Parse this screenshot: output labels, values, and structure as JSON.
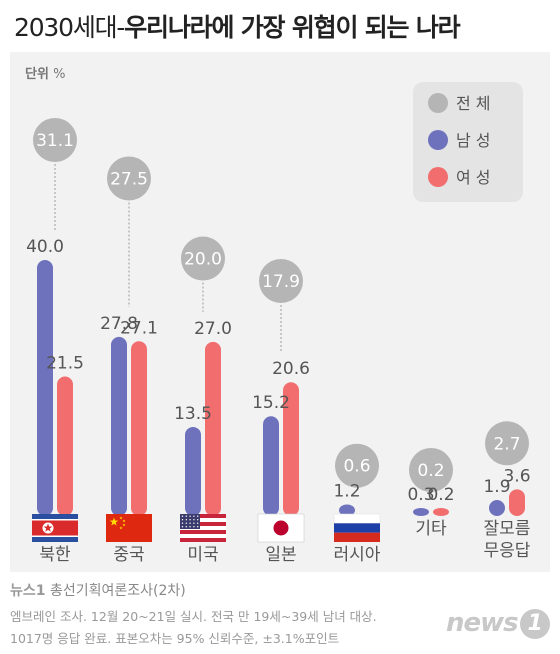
{
  "title_part1": "2030세대-",
  "title_part2": "우리나라에 가장 위협이 되는 나라",
  "unit": {
    "label": "단위",
    "value": "%"
  },
  "colors": {
    "total": "#b5b5b5",
    "male": "#6e72bd",
    "female": "#f16d6e"
  },
  "chart_data": {
    "type": "bar",
    "categories": [
      "북한",
      "중국",
      "미국",
      "일본",
      "러시아",
      "기타",
      "잘모름\n무응답"
    ],
    "series": [
      {
        "name": "전 체",
        "values": [
          31.1,
          27.5,
          20.0,
          17.9,
          0.6,
          0.2,
          2.7
        ],
        "labels": [
          "31.1",
          "27.5",
          "20.0",
          "17.9",
          "0.6",
          "0.2",
          "2.7"
        ]
      },
      {
        "name": "남 성",
        "values": [
          40.0,
          27.8,
          13.5,
          15.2,
          1.2,
          0.3,
          1.9
        ],
        "labels": [
          "40.0",
          "27.8",
          "13.5",
          "15.2",
          "1.2",
          "0.3",
          "1.9"
        ]
      },
      {
        "name": "여 성",
        "values": [
          21.5,
          27.1,
          27.0,
          20.6,
          null,
          0.2,
          3.6
        ],
        "labels": [
          "21.5",
          "27.1",
          "27.0",
          "20.6",
          "",
          "0.2",
          "3.6"
        ]
      }
    ],
    "flags": [
      "north-korea-flag",
      "china-flag",
      "usa-flag",
      "japan-flag",
      "russia-flag",
      null,
      null
    ],
    "legend_position": "top-right",
    "grid": false
  },
  "source": {
    "brand": "뉴스1",
    "name": " 총선기획여론조사(2차)"
  },
  "notes": [
    "엠브레인 조사. 12월 20~21일 실시. 전국 만 19세~39세 남녀 대상.",
    "1017명 응답 완료. 표본오차는 95% 신뢰수준, ±3.1%포인트"
  ],
  "logo": {
    "text": "news",
    "mark": "1"
  }
}
